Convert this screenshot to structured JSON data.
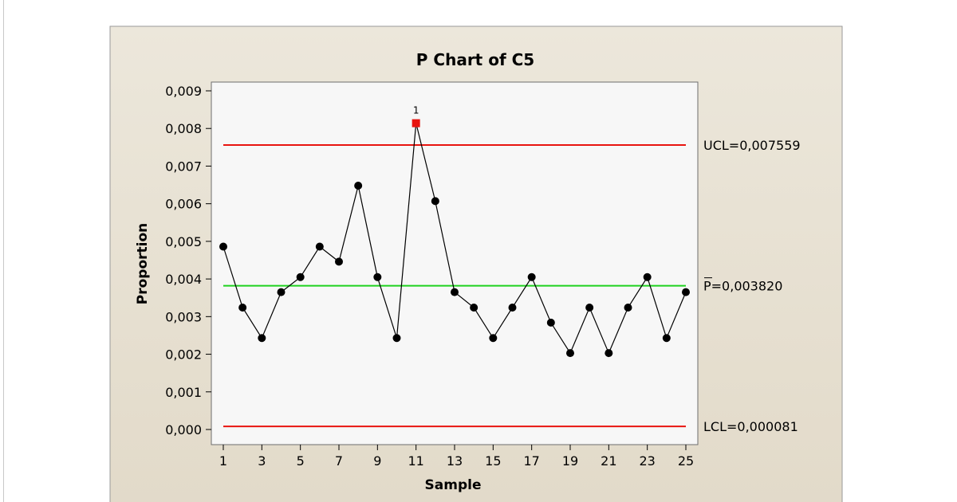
{
  "chart_data": {
    "type": "line",
    "title": "P Chart of C5",
    "xlabel": "Sample",
    "ylabel": "Proportion",
    "xlim": [
      1,
      25
    ],
    "ylim": [
      0,
      0.009
    ],
    "x_ticks": [
      1,
      3,
      5,
      7,
      9,
      11,
      13,
      15,
      17,
      19,
      21,
      23,
      25
    ],
    "x_tick_labels": [
      "1",
      "3",
      "5",
      "7",
      "9",
      "11",
      "13",
      "15",
      "17",
      "19",
      "21",
      "23",
      "25"
    ],
    "y_ticks": [
      0,
      0.001,
      0.002,
      0.003,
      0.004,
      0.005,
      0.006,
      0.007,
      0.008,
      0.009
    ],
    "y_tick_labels": [
      "0,000",
      "0,001",
      "0,002",
      "0,003",
      "0,004",
      "0,005",
      "0,006",
      "0,007",
      "0,008",
      "0,009"
    ],
    "x": [
      1,
      2,
      3,
      4,
      5,
      6,
      7,
      8,
      9,
      10,
      11,
      12,
      13,
      14,
      15,
      16,
      17,
      18,
      19,
      20,
      21,
      22,
      23,
      24,
      25
    ],
    "series": [
      {
        "values": [
          0.00486,
          0.00324,
          0.00243,
          0.00365,
          0.00405,
          0.00486,
          0.00446,
          0.00648,
          0.00405,
          0.00243,
          0.00814,
          0.00607,
          0.00365,
          0.00324,
          0.00243,
          0.00324,
          0.00405,
          0.00284,
          0.00203,
          0.00324,
          0.00203,
          0.00324,
          0.00405,
          0.00243,
          0.00365
        ],
        "color": "#000000"
      }
    ],
    "control_lines": [
      {
        "label": "UCL=0,007559",
        "value": 0.007559,
        "color": "#e8140f"
      },
      {
        "label": "P=0,003820",
        "value": 0.00382,
        "color": "#1fd21f",
        "overline_first_char": true
      },
      {
        "label": "LCL=0,000081",
        "value": 8.1e-05,
        "color": "#e8140f"
      }
    ],
    "flagged_points": [
      {
        "x": 11,
        "label": "1",
        "color": "#e8140f"
      }
    ],
    "grid": false,
    "colors": {
      "frame_bg": "#e8e2d4",
      "plot_bg": "#f7f7f7",
      "line": "#000000",
      "marker": "#000000",
      "flag": "#e8140f"
    }
  }
}
